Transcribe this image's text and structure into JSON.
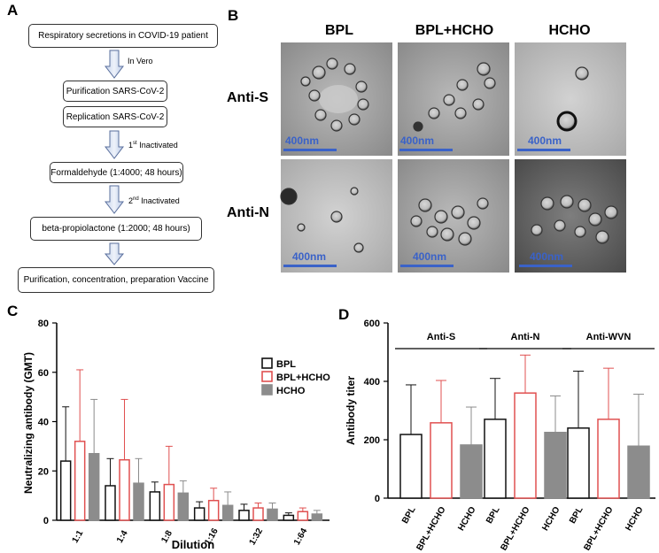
{
  "panels": {
    "a": "A",
    "b": "B",
    "c": "C",
    "d": "D"
  },
  "flowchart": {
    "steps": [
      "Respiratory secretions in COVID-19 patient",
      "Purification SARS-CoV-2",
      "Replication SARS-CoV-2",
      "Formaldehyde (1:4000; 48 hours)",
      "beta-propiolactone (1:2000; 48 hours)",
      "Purification, concentration, preparation Vaccine"
    ],
    "note_vero": "In Vero",
    "note_first": {
      "num": "1",
      "sup": "st",
      "text": " Inactivated"
    },
    "note_second": {
      "num": "2",
      "sup": "nd",
      "text": " Inactivated"
    }
  },
  "em": {
    "columns": [
      "BPL",
      "BPL+HCHO",
      "HCHO"
    ],
    "rows": [
      "Anti-S",
      "Anti-N"
    ],
    "scale_label": "400nm"
  },
  "colors": {
    "bpl": "#111111",
    "bpl_hcho": "#e05050",
    "hcho": "#8c8c8c",
    "scale": "#3a62c8"
  },
  "chart_data": [
    {
      "type": "bar",
      "categories": [
        "1:1",
        "1:4",
        "1:8",
        "1:16",
        "1:32",
        "1:64"
      ],
      "series": [
        {
          "name": "BPL",
          "values": [
            24,
            14,
            11.5,
            5,
            4,
            2
          ],
          "errors": [
            22,
            11,
            4,
            2.5,
            2.5,
            1
          ]
        },
        {
          "name": "BPL+HCHO",
          "values": [
            32,
            24.5,
            14.5,
            8,
            5,
            3.5
          ],
          "errors": [
            29,
            24.5,
            15.5,
            5,
            2,
            1.5
          ]
        },
        {
          "name": "HCHO",
          "values": [
            27,
            15,
            11,
            6,
            4.5,
            2.5
          ],
          "errors": [
            22,
            10,
            5,
            5.5,
            2.5,
            1.5
          ]
        }
      ],
      "xlabel": "Dilution",
      "ylabel": "Neutralizing antibody (GMT)",
      "ylim": [
        0,
        80
      ],
      "yticks": [
        0,
        20,
        40,
        60,
        80
      ],
      "legend": "top-right"
    },
    {
      "type": "bar",
      "groups": [
        "Anti-S",
        "Anti-N",
        "Anti-WVN"
      ],
      "categories": [
        "BPL",
        "BPL+HCHO",
        "HCHO",
        "BPL",
        "BPL+HCHO",
        "HCHO",
        "BPL",
        "BPL+HCHO",
        "HCHO"
      ],
      "values": [
        218,
        258,
        182,
        270,
        360,
        225,
        240,
        270,
        178
      ],
      "errors": [
        170,
        145,
        130,
        140,
        130,
        125,
        195,
        175,
        178
      ],
      "ylabel": "Antibody titer",
      "ylim": [
        0,
        600
      ],
      "yticks": [
        0,
        200,
        400,
        600
      ]
    }
  ]
}
